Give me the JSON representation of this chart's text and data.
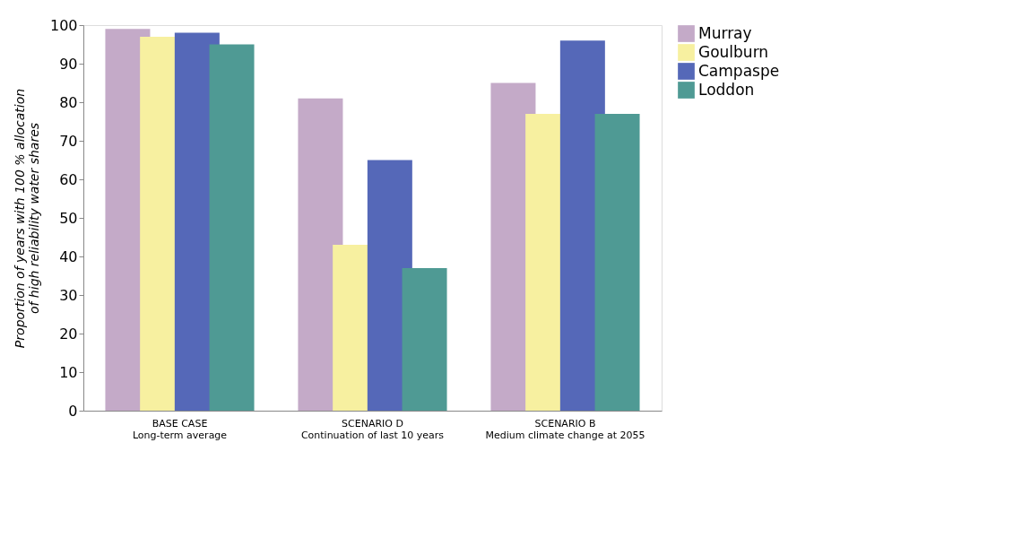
{
  "chart_data": {
    "type": "bar",
    "ylabel": "Proportion of years with 100 % allocation\nof high reliability water shares",
    "categories": [
      "BASE CASE\nLong-term average",
      "SCENARIO D\nContinuation of last 10 years",
      "SCENARIO B\nMedium climate change at 2055"
    ],
    "series": [
      {
        "name": "Murray",
        "color": "#c4aac8",
        "values": [
          99,
          81,
          85
        ]
      },
      {
        "name": "Goulburn",
        "color": "#f7f0a0",
        "values": [
          97,
          43,
          77
        ]
      },
      {
        "name": "Campaspe",
        "color": "#5568b8",
        "values": [
          98,
          65,
          96
        ]
      },
      {
        "name": "Loddon",
        "color": "#4f9a94",
        "values": [
          95,
          37,
          77
        ]
      }
    ],
    "ylim": [
      0,
      100
    ],
    "yticks": [
      0,
      10,
      20,
      30,
      40,
      50,
      60,
      70,
      80,
      90,
      100
    ],
    "grid": false,
    "legend": "right"
  }
}
